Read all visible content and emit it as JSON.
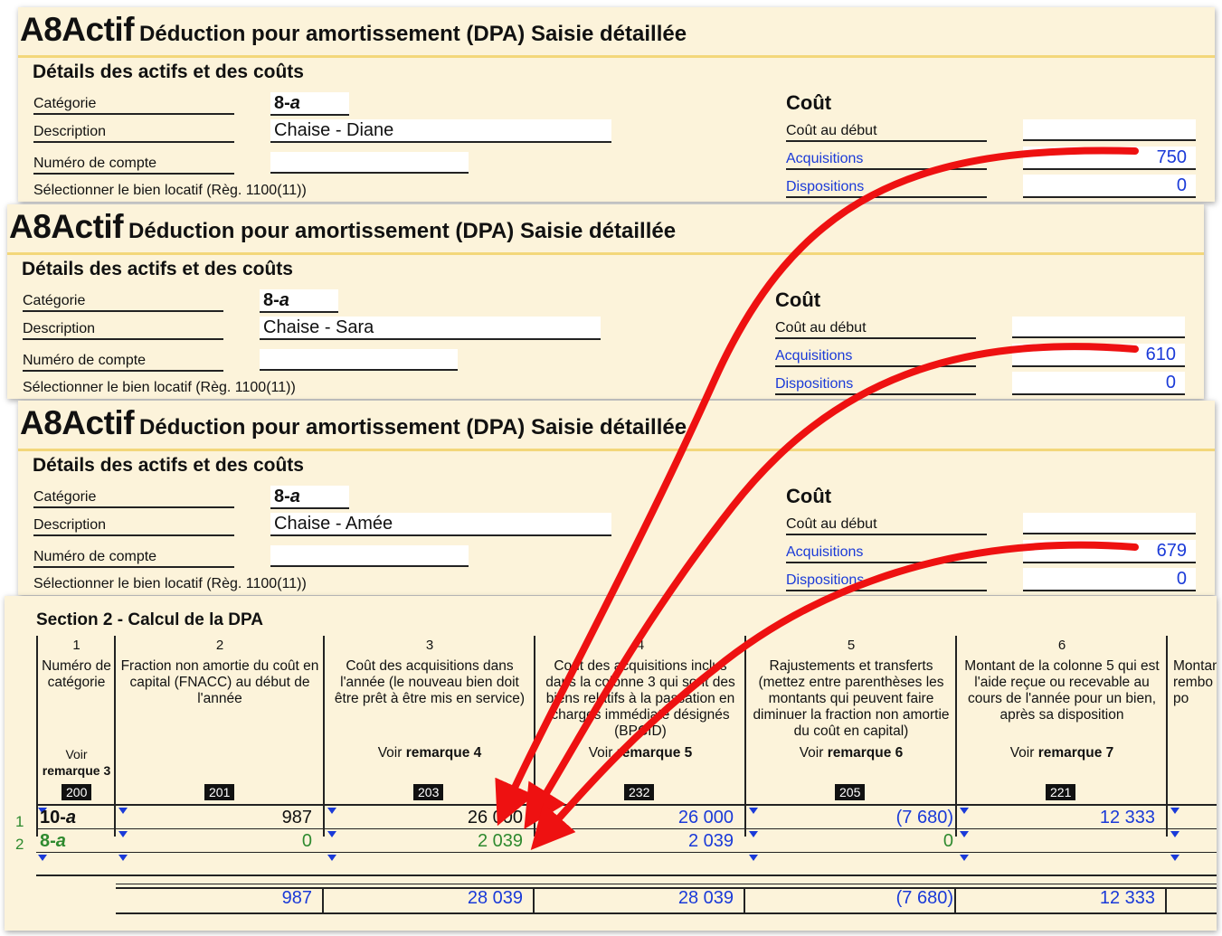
{
  "panels": [
    {
      "app": "A8Actif",
      "subtitle": "Déduction pour amortissement (DPA) Saisie détaillée",
      "section": "Détails des actifs et des coûts",
      "labels": {
        "categorie": "Catégorie",
        "description": "Description",
        "compte": "Numéro de compte",
        "bien": "Sélectionner le bien locatif (Règ. 1100(11))"
      },
      "categorie_num": "8-",
      "categorie_letter": "a",
      "description_value": "Chaise - Diane",
      "cout_head": "Coût",
      "cout_debut": "Coût au début",
      "acquisitions": "Acquisitions",
      "acquisitions_value": "750",
      "dispositions": "Dispositions",
      "dispositions_value": "0"
    },
    {
      "app": "A8Actif",
      "subtitle": "Déduction pour amortissement (DPA) Saisie détaillée",
      "section": "Détails des actifs et des coûts",
      "labels": {
        "categorie": "Catégorie",
        "description": "Description",
        "compte": "Numéro de compte",
        "bien": "Sélectionner le bien locatif (Règ. 1100(11))"
      },
      "categorie_num": "8-",
      "categorie_letter": "a",
      "description_value": "Chaise - Sara",
      "cout_head": "Coût",
      "cout_debut": "Coût au début",
      "acquisitions": "Acquisitions",
      "acquisitions_value": "610",
      "dispositions": "Dispositions",
      "dispositions_value": "0"
    },
    {
      "app": "A8Actif",
      "subtitle": "Déduction pour amortissement (DPA) Saisie détaillée",
      "section": "Détails des actifs et des coûts",
      "labels": {
        "categorie": "Catégorie",
        "description": "Description",
        "compte": "Numéro de compte",
        "bien": "Sélectionner le bien locatif (Règ. 1100(11))"
      },
      "categorie_num": "8-",
      "categorie_letter": "a",
      "description_value": "Chaise - Amée",
      "cout_head": "Coût",
      "cout_debut": "Coût au début",
      "acquisitions": "Acquisitions",
      "acquisitions_value": "679",
      "dispositions": "Dispositions",
      "dispositions_value": "0"
    }
  ],
  "section2": {
    "title": "Section 2 - Calcul de la DPA",
    "columns": [
      {
        "num": "1",
        "text": "Numéro de catégorie",
        "remark_a": "Voir",
        "remark_b": "remarque 3",
        "code": "200"
      },
      {
        "num": "2",
        "text": "Fraction non amortie du coût en capital (FNACC) au début de l'année",
        "code": "201"
      },
      {
        "num": "3",
        "text": "Coût des acquisitions dans l'année (le nouveau bien doit être prêt à être mis en service)",
        "remark_a": "Voir ",
        "remark_b": "remarque 4",
        "code": "203"
      },
      {
        "num": "4",
        "text": "Coût des acquisitions inclus dans la colonne 3 qui sont des biens relatifs à la passation en charges immédiate désignés (BPCID)",
        "remark_a": "Voir ",
        "remark_b": "remarque 5",
        "code": "232"
      },
      {
        "num": "5",
        "text": "Rajustements et transferts (mettez entre parenthèses les montants qui peuvent faire diminuer la fraction non amortie du coût en capital)",
        "remark_a": "Voir ",
        "remark_b": "remarque 6",
        "code": "205"
      },
      {
        "num": "6",
        "text": "Montant de la colonne 5 qui est l'aide reçue ou recevable au cours de l'année pour un bien, après sa disposition",
        "remark_a": "Voir ",
        "remark_b": "remarque 7",
        "code": "221"
      },
      {
        "num": "",
        "text": "Montant rembo po"
      }
    ],
    "rows": [
      {
        "n": "1",
        "cat_num": "10-",
        "cat_letter": "a",
        "c2": "987",
        "c3": "26 000",
        "c4": "26 000",
        "c5": "(7 680)",
        "c6": "12 333"
      },
      {
        "n": "2",
        "cat_num": "8-",
        "cat_letter": "a",
        "c2": "0",
        "c3": "2 039",
        "c4": "2 039",
        "c5": "0",
        "c6": ""
      }
    ],
    "totals": {
      "c2": "987",
      "c3": "28 039",
      "c4": "28 039",
      "c5": "(7 680)",
      "c6": "12 333"
    }
  },
  "colors": {
    "panel_bg": "#fcf3da",
    "title_line": "#f3d77a",
    "link_blue": "#1a3ad8",
    "green": "#2f8a2f",
    "arrow_red": "#ee1111"
  }
}
